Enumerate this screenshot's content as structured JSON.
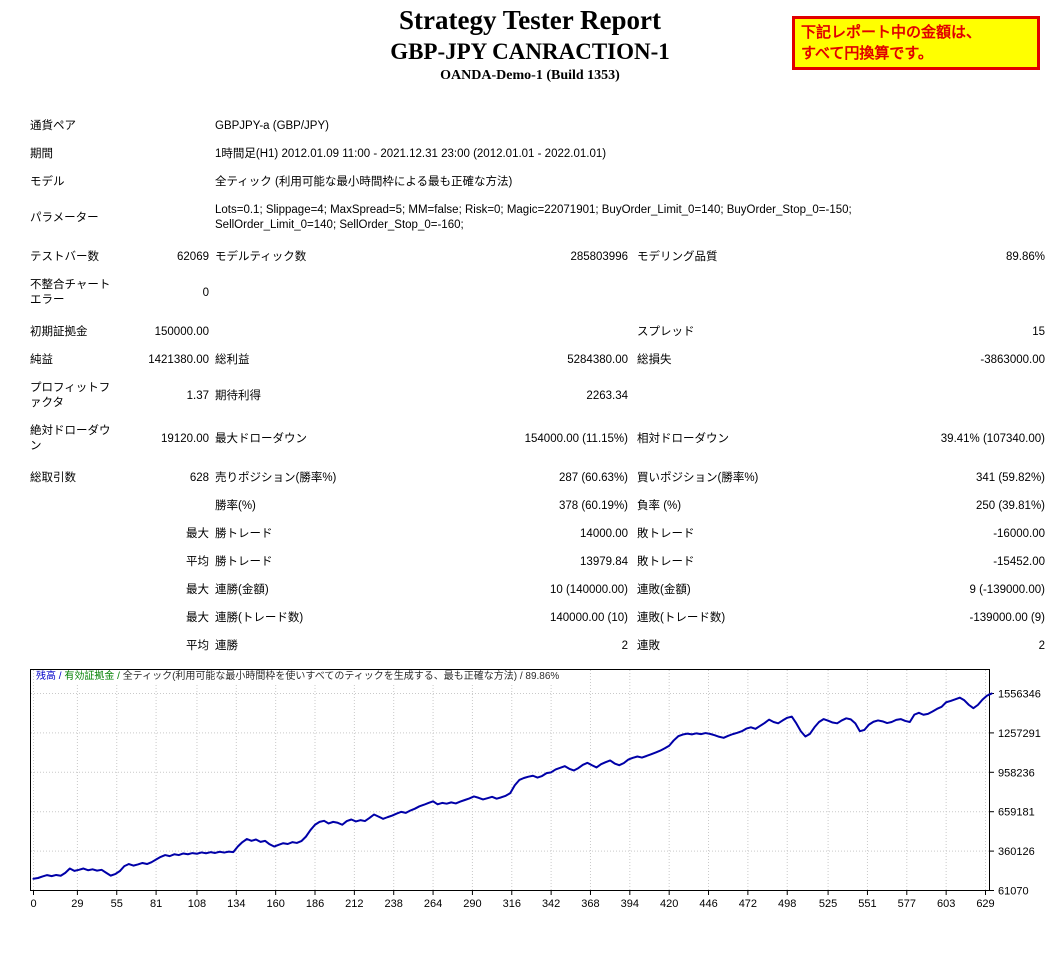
{
  "header": {
    "title": "Strategy Tester Report",
    "subtitle": "GBP-JPY CANRACTION-1",
    "server": "OANDA-Demo-1 (Build 1353)",
    "notice_line1": "下記レポート中の金額は、",
    "notice_line2": "すべて円換算です。",
    "notice_bg": "#ffff00",
    "notice_color": "#e10000"
  },
  "report": {
    "rows": [
      {
        "t": "info",
        "l": "通貨ペア",
        "v": "GBPJPY-a (GBP/JPY)"
      },
      {
        "t": "info",
        "l": "期間",
        "v": "1時間足(H1) 2012.01.09 11:00 - 2021.12.31 23:00 (2012.01.01 - 2022.01.01)"
      },
      {
        "t": "info",
        "l": "モデル",
        "v": "全ティック (利用可能な最小時間枠による最も正確な方法)"
      },
      {
        "t": "info",
        "l": "パラメーター",
        "v": "Lots=0.1; Slippage=4; MaxSpread=5; MM=false; Risk=0; Magic=22071901; BuyOrder_Limit_0=140; BuyOrder_Stop_0=-150;\nSellOrder_Limit_0=140; SellOrder_Stop_0=-160;"
      },
      {
        "t": "stat",
        "gap": true,
        "c": [
          "テストバー数",
          "62069",
          "モデルティック数",
          "285803996",
          "モデリング品質",
          "89.86%"
        ]
      },
      {
        "t": "stat",
        "c": [
          "不整合チャートエラー",
          "0",
          "",
          "",
          "",
          ""
        ]
      },
      {
        "t": "stat",
        "gap": true,
        "c": [
          "初期証拠金",
          "150000.00",
          "",
          "",
          "スプレッド",
          "15"
        ]
      },
      {
        "t": "stat",
        "c": [
          "純益",
          "1421380.00",
          "総利益",
          "5284380.00",
          "総損失",
          "-3863000.00"
        ]
      },
      {
        "t": "stat",
        "c": [
          "プロフィットファクタ",
          "1.37",
          "期待利得",
          "2263.34",
          "",
          ""
        ]
      },
      {
        "t": "stat",
        "c": [
          "絶対ドローダウン",
          "19120.00",
          "最大ドローダウン",
          "154000.00 (11.15%)",
          "相対ドローダウン",
          "39.41% (107340.00)"
        ]
      },
      {
        "t": "stat",
        "gap": true,
        "c": [
          "総取引数",
          "628",
          "売りポジション(勝率%)",
          "287 (60.63%)",
          "買いポジション(勝率%)",
          "341 (59.82%)"
        ]
      },
      {
        "t": "stat",
        "c": [
          "",
          "",
          "勝率(%)",
          "378 (60.19%)",
          "負率 (%)",
          "250 (39.81%)"
        ]
      },
      {
        "t": "stat",
        "c": [
          "",
          "最大",
          "勝トレード",
          "14000.00",
          "敗トレード",
          "-16000.00"
        ]
      },
      {
        "t": "stat",
        "c": [
          "",
          "平均",
          "勝トレード",
          "13979.84",
          "敗トレード",
          "-15452.00"
        ]
      },
      {
        "t": "stat",
        "c": [
          "",
          "最大",
          "連勝(金額)",
          "10 (140000.00)",
          "連敗(金額)",
          "9 (-139000.00)"
        ]
      },
      {
        "t": "stat",
        "c": [
          "",
          "最大",
          "連勝(トレード数)",
          "140000.00 (10)",
          "連敗(トレード数)",
          "-139000.00 (9)"
        ]
      },
      {
        "t": "stat",
        "c": [
          "",
          "平均",
          "連勝",
          "2",
          "連敗",
          "2"
        ]
      }
    ]
  },
  "chart_data": {
    "type": "line",
    "title": "",
    "legend": {
      "parts": [
        {
          "text": "残高 / ",
          "color": "#0000c8"
        },
        {
          "text": "有効証拠金 / ",
          "color": "#008000"
        },
        {
          "text": "全ティック(利用可能な最小時間枠を使いすべてのティックを生成する、最も正確な方法) / 89.86%",
          "color": "#2b2b2b"
        }
      ]
    },
    "grid": true,
    "line_color": "#0000a8",
    "grid_color": "#c9c9c9",
    "xlim": [
      0,
      633
    ],
    "ylim": [
      61070,
      1726000
    ],
    "x_ticks": [
      0,
      29,
      55,
      81,
      108,
      134,
      160,
      186,
      212,
      238,
      264,
      290,
      316,
      342,
      368,
      394,
      420,
      446,
      472,
      498,
      525,
      551,
      577,
      603,
      629
    ],
    "y_ticks": [
      61070,
      360126,
      659181,
      958236,
      1257291,
      1556346
    ],
    "series": [
      {
        "name": "残高",
        "color": "#0000a8",
        "points": [
          [
            0,
            150000
          ],
          [
            3,
            156000
          ],
          [
            6,
            168000
          ],
          [
            9,
            178000
          ],
          [
            12,
            170000
          ],
          [
            15,
            179000
          ],
          [
            18,
            173000
          ],
          [
            21,
            195000
          ],
          [
            24,
            228000
          ],
          [
            27,
            210000
          ],
          [
            30,
            218000
          ],
          [
            33,
            228000
          ],
          [
            36,
            215000
          ],
          [
            39,
            222000
          ],
          [
            42,
            212000
          ],
          [
            45,
            218000
          ],
          [
            48,
            196000
          ],
          [
            51,
            174000
          ],
          [
            54,
            186000
          ],
          [
            57,
            208000
          ],
          [
            60,
            246000
          ],
          [
            63,
            262000
          ],
          [
            66,
            250000
          ],
          [
            69,
            259000
          ],
          [
            72,
            270000
          ],
          [
            75,
            262000
          ],
          [
            78,
            276000
          ],
          [
            81,
            296000
          ],
          [
            84,
            316000
          ],
          [
            87,
            330000
          ],
          [
            90,
            322000
          ],
          [
            93,
            336000
          ],
          [
            96,
            330000
          ],
          [
            99,
            342000
          ],
          [
            102,
            336000
          ],
          [
            105,
            345000
          ],
          [
            108,
            340000
          ],
          [
            111,
            350000
          ],
          [
            114,
            344000
          ],
          [
            117,
            352000
          ],
          [
            120,
            346000
          ],
          [
            123,
            355000
          ],
          [
            126,
            349000
          ],
          [
            129,
            356000
          ],
          [
            132,
            352000
          ],
          [
            135,
            395000
          ],
          [
            138,
            428000
          ],
          [
            141,
            452000
          ],
          [
            144,
            438000
          ],
          [
            147,
            448000
          ],
          [
            150,
            430000
          ],
          [
            153,
            438000
          ],
          [
            156,
            412000
          ],
          [
            159,
            395000
          ],
          [
            162,
            408000
          ],
          [
            165,
            420000
          ],
          [
            168,
            414000
          ],
          [
            171,
            428000
          ],
          [
            174,
            422000
          ],
          [
            177,
            436000
          ],
          [
            180,
            470000
          ],
          [
            183,
            520000
          ],
          [
            186,
            560000
          ],
          [
            189,
            582000
          ],
          [
            192,
            590000
          ],
          [
            195,
            570000
          ],
          [
            198,
            582000
          ],
          [
            201,
            575000
          ],
          [
            204,
            560000
          ],
          [
            207,
            588000
          ],
          [
            210,
            600000
          ],
          [
            213,
            585000
          ],
          [
            216,
            595000
          ],
          [
            219,
            588000
          ],
          [
            222,
            612000
          ],
          [
            225,
            638000
          ],
          [
            228,
            622000
          ],
          [
            231,
            605000
          ],
          [
            234,
            618000
          ],
          [
            237,
            630000
          ],
          [
            240,
            645000
          ],
          [
            243,
            658000
          ],
          [
            246,
            650000
          ],
          [
            249,
            668000
          ],
          [
            252,
            682000
          ],
          [
            255,
            700000
          ],
          [
            258,
            712000
          ],
          [
            261,
            726000
          ],
          [
            264,
            738000
          ],
          [
            267,
            715000
          ],
          [
            270,
            726000
          ],
          [
            273,
            720000
          ],
          [
            276,
            730000
          ],
          [
            279,
            722000
          ],
          [
            282,
            736000
          ],
          [
            285,
            748000
          ],
          [
            288,
            760000
          ],
          [
            291,
            775000
          ],
          [
            294,
            765000
          ],
          [
            297,
            752000
          ],
          [
            300,
            762000
          ],
          [
            303,
            772000
          ],
          [
            306,
            758000
          ],
          [
            309,
            768000
          ],
          [
            312,
            780000
          ],
          [
            315,
            800000
          ],
          [
            318,
            860000
          ],
          [
            321,
            900000
          ],
          [
            324,
            915000
          ],
          [
            327,
            925000
          ],
          [
            330,
            932000
          ],
          [
            333,
            918000
          ],
          [
            336,
            930000
          ],
          [
            339,
            952000
          ],
          [
            342,
            958000
          ],
          [
            345,
            980000
          ],
          [
            348,
            992000
          ],
          [
            351,
            1005000
          ],
          [
            354,
            985000
          ],
          [
            357,
            972000
          ],
          [
            360,
            990000
          ],
          [
            363,
            1015000
          ],
          [
            366,
            1030000
          ],
          [
            369,
            1012000
          ],
          [
            372,
            995000
          ],
          [
            375,
            1020000
          ],
          [
            378,
            1035000
          ],
          [
            381,
            1048000
          ],
          [
            384,
            1025000
          ],
          [
            387,
            1012000
          ],
          [
            390,
            1028000
          ],
          [
            393,
            1055000
          ],
          [
            396,
            1068000
          ],
          [
            399,
            1078000
          ],
          [
            402,
            1070000
          ],
          [
            405,
            1082000
          ],
          [
            408,
            1095000
          ],
          [
            411,
            1108000
          ],
          [
            414,
            1122000
          ],
          [
            417,
            1140000
          ],
          [
            420,
            1160000
          ],
          [
            423,
            1200000
          ],
          [
            426,
            1232000
          ],
          [
            429,
            1245000
          ],
          [
            432,
            1252000
          ],
          [
            435,
            1246000
          ],
          [
            438,
            1254000
          ],
          [
            441,
            1248000
          ],
          [
            444,
            1256000
          ],
          [
            447,
            1250000
          ],
          [
            450,
            1240000
          ],
          [
            453,
            1228000
          ],
          [
            456,
            1220000
          ],
          [
            459,
            1235000
          ],
          [
            462,
            1248000
          ],
          [
            465,
            1258000
          ],
          [
            468,
            1270000
          ],
          [
            471,
            1290000
          ],
          [
            474,
            1300000
          ],
          [
            477,
            1288000
          ],
          [
            480,
            1310000
          ],
          [
            483,
            1332000
          ],
          [
            486,
            1358000
          ],
          [
            489,
            1340000
          ],
          [
            492,
            1330000
          ],
          [
            495,
            1352000
          ],
          [
            498,
            1372000
          ],
          [
            501,
            1381000
          ],
          [
            504,
            1330000
          ],
          [
            507,
            1270000
          ],
          [
            510,
            1230000
          ],
          [
            513,
            1250000
          ],
          [
            516,
            1300000
          ],
          [
            519,
            1340000
          ],
          [
            522,
            1362000
          ],
          [
            525,
            1350000
          ],
          [
            528,
            1336000
          ],
          [
            531,
            1330000
          ],
          [
            534,
            1352000
          ],
          [
            537,
            1368000
          ],
          [
            540,
            1360000
          ],
          [
            543,
            1330000
          ],
          [
            546,
            1270000
          ],
          [
            549,
            1280000
          ],
          [
            552,
            1320000
          ],
          [
            555,
            1342000
          ],
          [
            558,
            1352000
          ],
          [
            561,
            1345000
          ],
          [
            564,
            1332000
          ],
          [
            567,
            1340000
          ],
          [
            570,
            1356000
          ],
          [
            573,
            1362000
          ],
          [
            576,
            1348000
          ],
          [
            579,
            1340000
          ],
          [
            582,
            1396000
          ],
          [
            585,
            1410000
          ],
          [
            588,
            1395000
          ],
          [
            591,
            1402000
          ],
          [
            594,
            1420000
          ],
          [
            597,
            1440000
          ],
          [
            600,
            1455000
          ],
          [
            603,
            1490000
          ],
          [
            606,
            1500000
          ],
          [
            609,
            1512000
          ],
          [
            612,
            1525000
          ],
          [
            615,
            1505000
          ],
          [
            618,
            1470000
          ],
          [
            621,
            1445000
          ],
          [
            624,
            1470000
          ],
          [
            627,
            1510000
          ],
          [
            630,
            1540000
          ],
          [
            633,
            1556000
          ]
        ]
      }
    ]
  }
}
